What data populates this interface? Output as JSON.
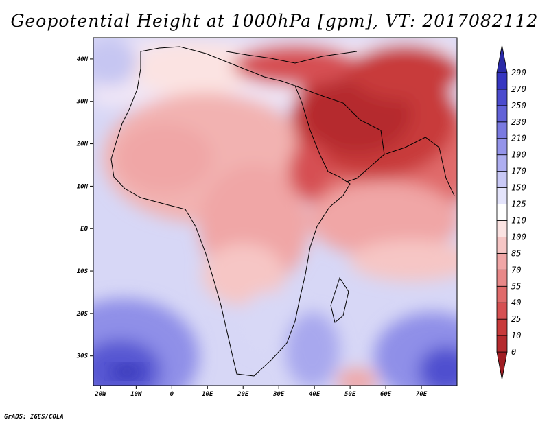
{
  "title": "Geopotential Height at 1000hPa [gpm], VT: 2017082112",
  "credit": "GrADS: IGES/COLA",
  "map": {
    "lon_range": [
      -22,
      80
    ],
    "lat_range": [
      -37,
      45
    ],
    "x_ticks": [
      {
        "lon": -20,
        "label": "20W"
      },
      {
        "lon": -10,
        "label": "10W"
      },
      {
        "lon": 0,
        "label": "0"
      },
      {
        "lon": 10,
        "label": "10E"
      },
      {
        "lon": 20,
        "label": "20E"
      },
      {
        "lon": 30,
        "label": "30E"
      },
      {
        "lon": 40,
        "label": "40E"
      },
      {
        "lon": 50,
        "label": "50E"
      },
      {
        "lon": 60,
        "label": "60E"
      },
      {
        "lon": 70,
        "label": "70E"
      }
    ],
    "y_ticks": [
      {
        "lat": 40,
        "label": "40N"
      },
      {
        "lat": 30,
        "label": "30N"
      },
      {
        "lat": 20,
        "label": "20N"
      },
      {
        "lat": 10,
        "label": "10N"
      },
      {
        "lat": 0,
        "label": "EQ"
      },
      {
        "lat": -10,
        "label": "10S"
      },
      {
        "lat": -20,
        "label": "20S"
      },
      {
        "lat": -30,
        "label": "30S"
      }
    ]
  },
  "colorbar": {
    "levels": [
      "0",
      "10",
      "25",
      "40",
      "55",
      "70",
      "85",
      "100",
      "110",
      "125",
      "150",
      "170",
      "190",
      "210",
      "230",
      "250",
      "270",
      "290"
    ],
    "colors": [
      "#a01d23",
      "#b52a2e",
      "#c83a3b",
      "#d65052",
      "#e06b6b",
      "#e88888",
      "#f0a6a6",
      "#f6c6c5",
      "#fbe3e2",
      "#ffffff",
      "#e4e4fb",
      "#c9c9f6",
      "#aeaef0",
      "#9494ea",
      "#7a7ae1",
      "#6262d8",
      "#4b4bce",
      "#3636c1",
      "#2a2aa6"
    ]
  }
}
